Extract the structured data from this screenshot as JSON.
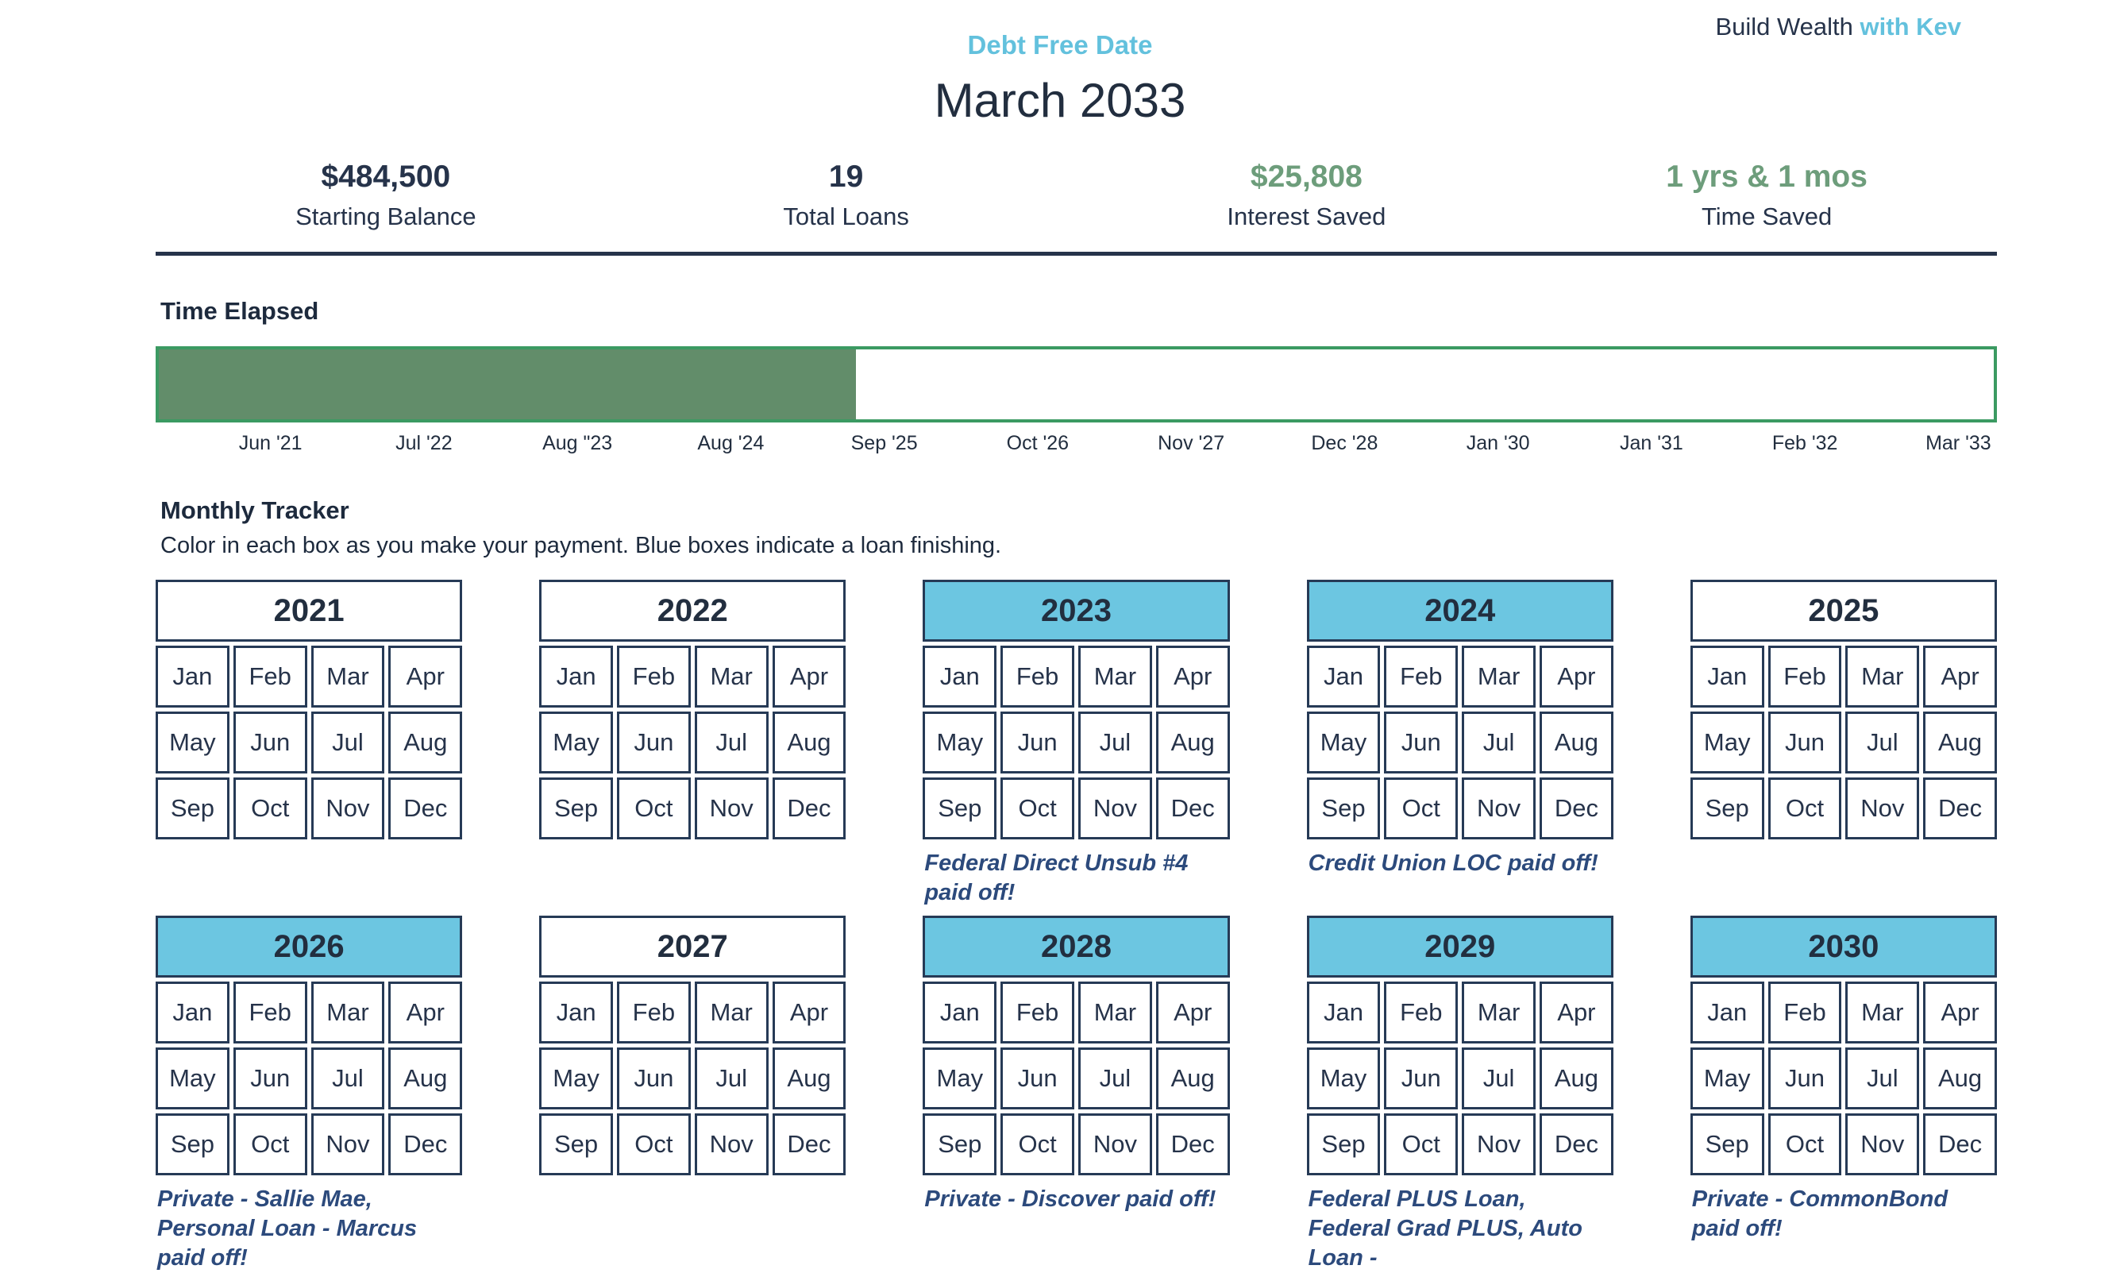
{
  "brand": {
    "prefix": "Build Wealth",
    "suffix": "with Kev"
  },
  "header": {
    "eyebrow": "Debt Free Date",
    "title": "March 2033"
  },
  "stats": [
    {
      "value": "$484,500",
      "label": "Starting Balance",
      "color": "navy"
    },
    {
      "value": "19",
      "label": "Total Loans",
      "color": "navy"
    },
    {
      "value": "$25,808",
      "label": "Interest Saved",
      "color": "green"
    },
    {
      "value": "1 yrs & 1 mos",
      "label": "Time Saved",
      "color": "green"
    }
  ],
  "time_elapsed": {
    "heading": "Time Elapsed",
    "progress_percent": 38,
    "ticks": [
      "Jun '21",
      "Jul '22",
      "Aug \"23",
      "Aug '24",
      "Sep '25",
      "Oct '26",
      "Nov '27",
      "Dec '28",
      "Jan '30",
      "Jan '31",
      "Feb '32",
      "Mar '33"
    ]
  },
  "monthly_tracker": {
    "heading": "Monthly Tracker",
    "subtitle": "Color in each box as you make your payment. Blue boxes indicate a loan finishing.",
    "months": [
      "Jan",
      "Feb",
      "Mar",
      "Apr",
      "May",
      "Jun",
      "Jul",
      "Aug",
      "Sep",
      "Oct",
      "Nov",
      "Dec"
    ],
    "years": [
      {
        "year": "2021",
        "highlight": false,
        "note": ""
      },
      {
        "year": "2022",
        "highlight": false,
        "note": ""
      },
      {
        "year": "2023",
        "highlight": true,
        "note": "Federal Direct Unsub #4 paid off!"
      },
      {
        "year": "2024",
        "highlight": true,
        "note": "Credit Union LOC paid off!"
      },
      {
        "year": "2025",
        "highlight": false,
        "note": ""
      },
      {
        "year": "2026",
        "highlight": true,
        "note": "Private - Sallie Mae, Personal Loan - Marcus paid off!"
      },
      {
        "year": "2027",
        "highlight": false,
        "note": ""
      },
      {
        "year": "2028",
        "highlight": true,
        "note": "Private - Discover paid off!"
      },
      {
        "year": "2029",
        "highlight": true,
        "note": "Federal PLUS Loan, Federal Grad PLUS, Auto Loan -"
      },
      {
        "year": "2030",
        "highlight": true,
        "note": "Private - CommonBond paid off!"
      }
    ]
  },
  "colors": {
    "navy_text": "#26334a",
    "accent_blue": "#63c1dd",
    "green_stat": "#6d9d7b",
    "bar_border_green": "#3b9a62",
    "bar_fill_green": "#628d6a",
    "note_blue": "#2c4a7c",
    "calendar_border": "#263a56",
    "calendar_header_blue": "#6cc6e1"
  }
}
